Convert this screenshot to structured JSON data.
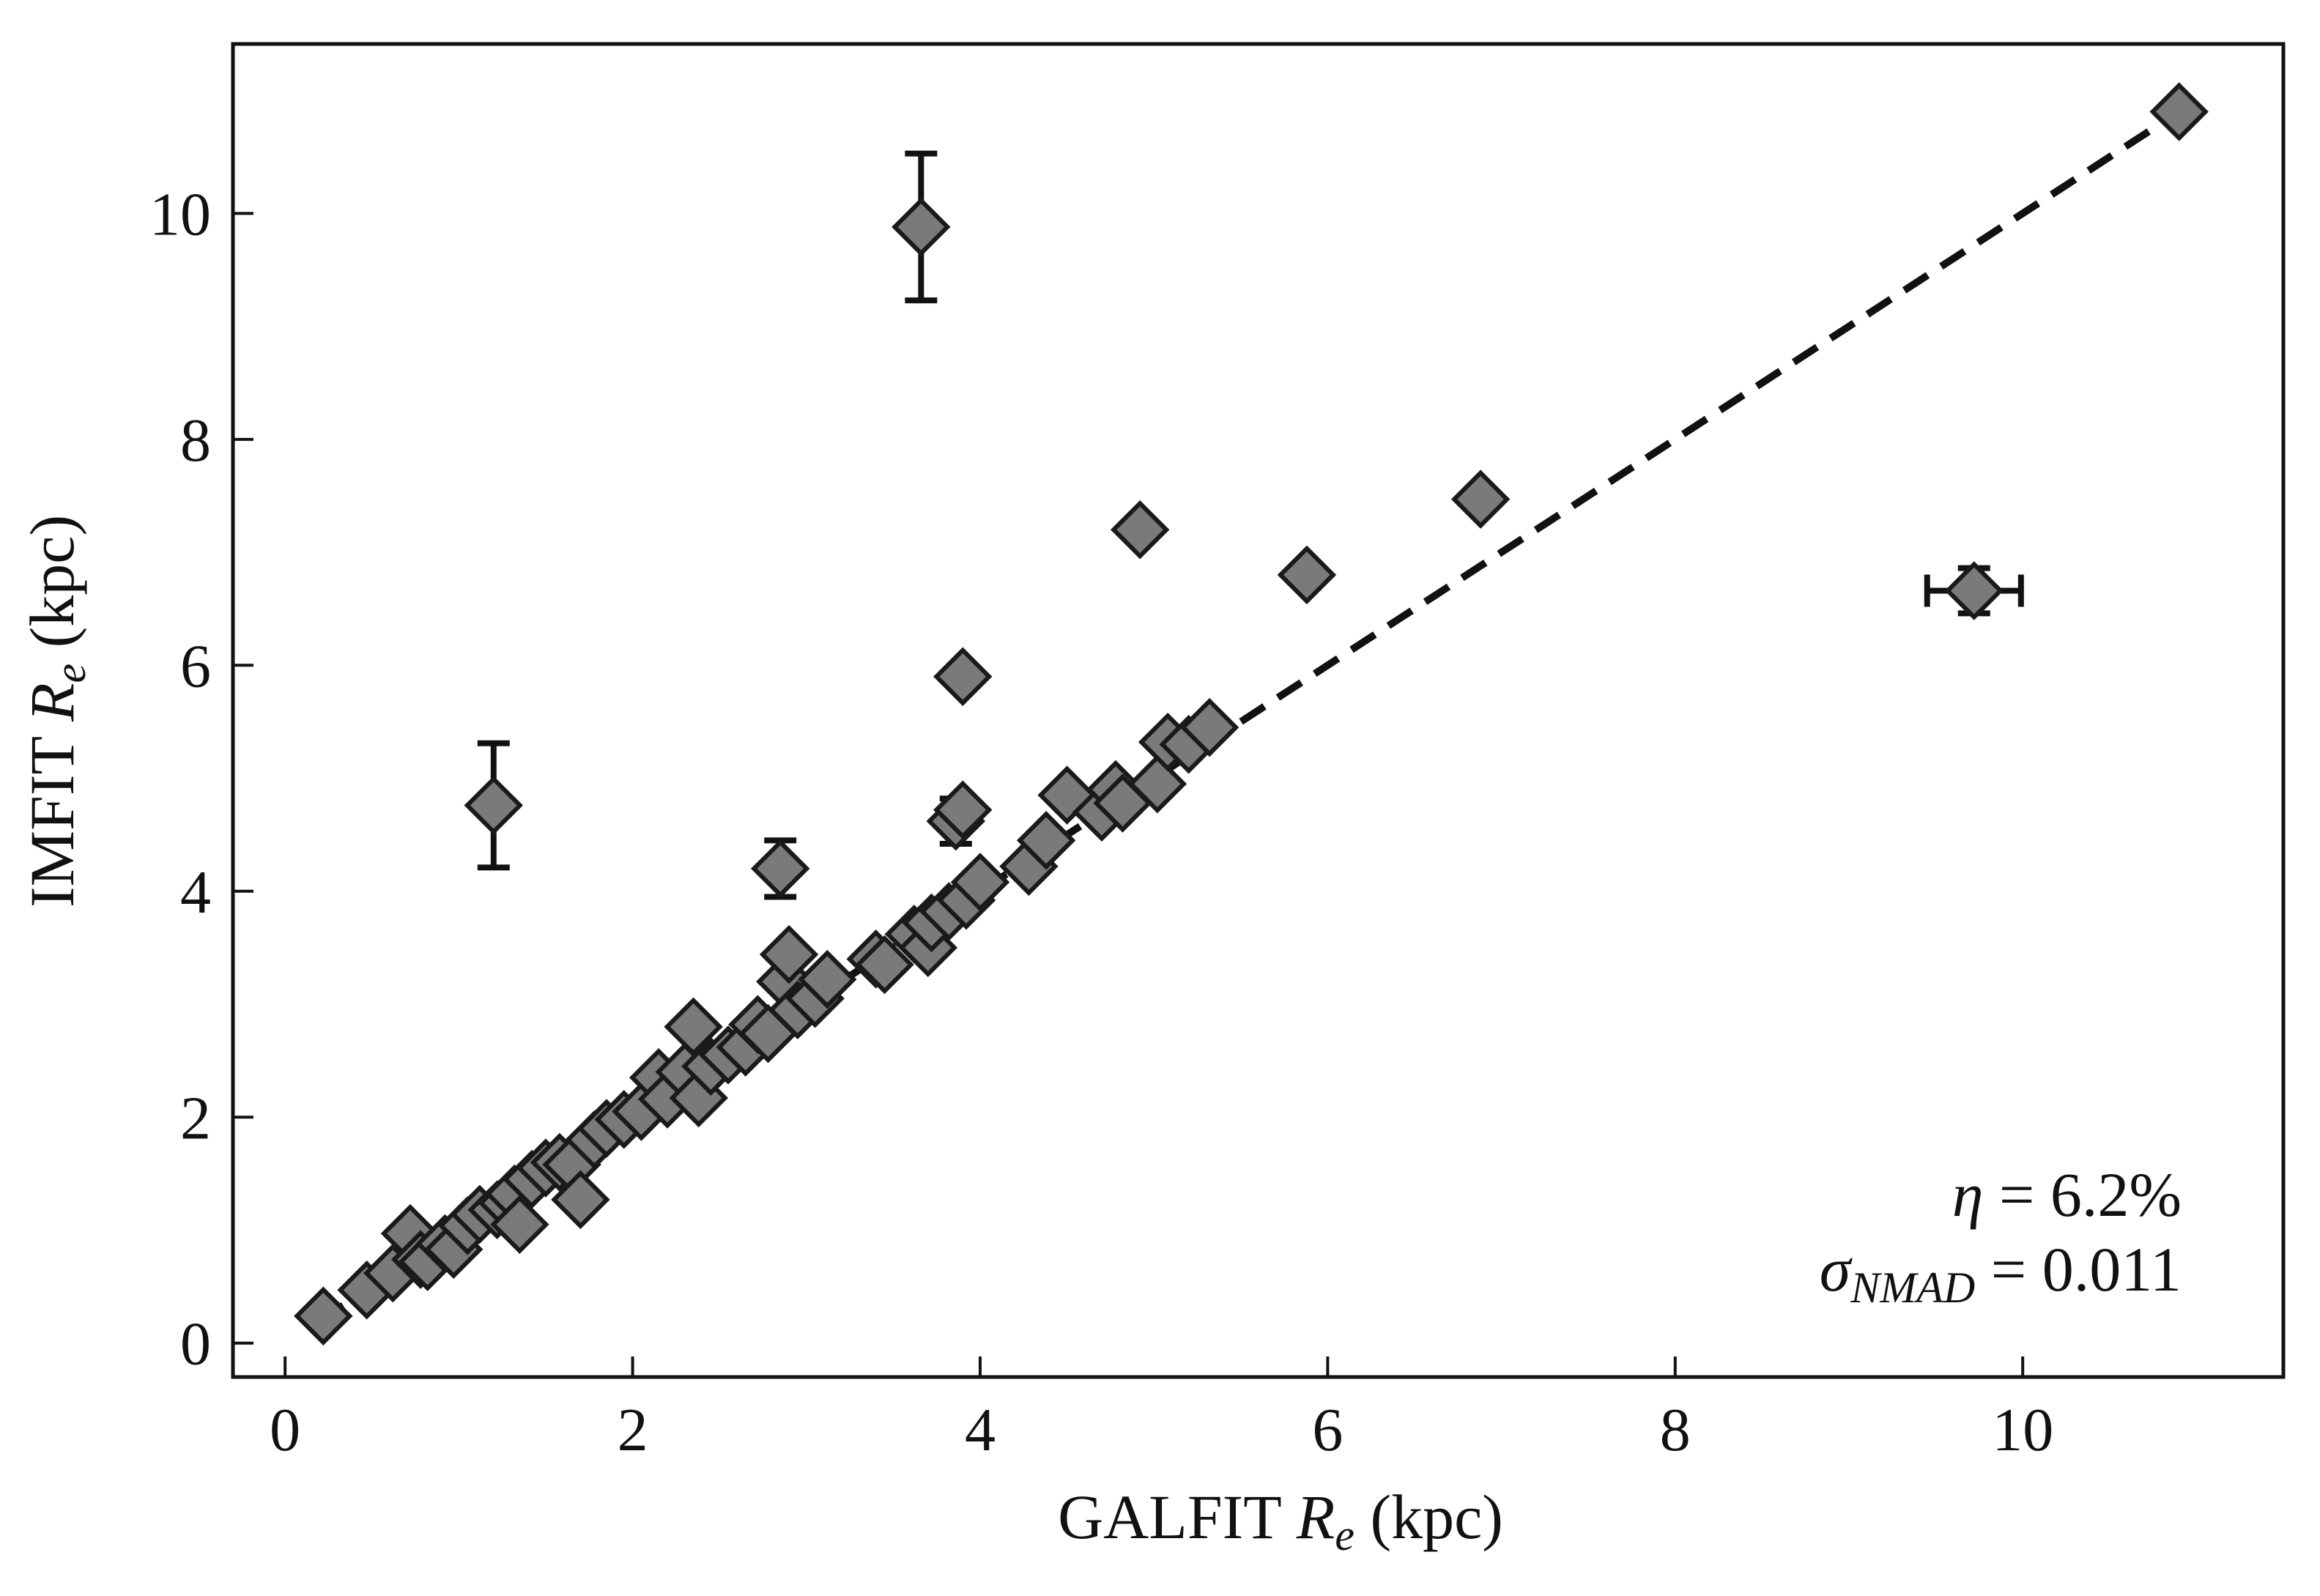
{
  "chart_data": {
    "type": "scatter",
    "xlabel": {
      "prefix": "GALFIT ",
      "var": "R",
      "sub": "e",
      "suffix": " (kpc)"
    },
    "ylabel": {
      "prefix": "IMFIT ",
      "var": "R",
      "sub": "e",
      "suffix": " (kpc)"
    },
    "xlim": [
      -0.3,
      11.5
    ],
    "ylim": [
      -0.3,
      11.5
    ],
    "xticks": [
      0,
      2,
      4,
      6,
      8,
      10
    ],
    "yticks": [
      0,
      2,
      4,
      6,
      8,
      10
    ],
    "grid": false,
    "marker": "diamond",
    "marker_color": "#7a7a7a",
    "edge_color": "#1a1a1a",
    "line_color": "#111111",
    "reference_line": {
      "style": "dashed",
      "x": [
        0.2,
        10.9
      ],
      "y": [
        0.2,
        10.9
      ]
    },
    "annotations": {
      "eta": {
        "symbol": "η",
        "text": " = 6.2%"
      },
      "sigma": {
        "symbol": "σ",
        "sub": "NMAD",
        "text": " = 0.011"
      }
    },
    "points": [
      {
        "x": 0.22,
        "y": 0.24
      },
      {
        "x": 0.47,
        "y": 0.47
      },
      {
        "x": 0.62,
        "y": 0.62
      },
      {
        "x": 0.72,
        "y": 0.97
      },
      {
        "x": 0.78,
        "y": 0.74
      },
      {
        "x": 0.82,
        "y": 0.72
      },
      {
        "x": 0.92,
        "y": 0.88
      },
      {
        "x": 0.97,
        "y": 0.83
      },
      {
        "x": 1.05,
        "y": 1.04
      },
      {
        "x": 1.12,
        "y": 1.14
      },
      {
        "x": 1.2,
        "y": 4.76,
        "yerr": 0.55
      },
      {
        "x": 1.22,
        "y": 1.18
      },
      {
        "x": 1.28,
        "y": 1.24
      },
      {
        "x": 1.32,
        "y": 1.32
      },
      {
        "x": 1.35,
        "y": 1.05
      },
      {
        "x": 1.42,
        "y": 1.45
      },
      {
        "x": 1.5,
        "y": 1.55
      },
      {
        "x": 1.58,
        "y": 1.6
      },
      {
        "x": 1.65,
        "y": 1.58
      },
      {
        "x": 1.7,
        "y": 1.27
      },
      {
        "x": 1.78,
        "y": 1.8
      },
      {
        "x": 1.85,
        "y": 1.9
      },
      {
        "x": 1.95,
        "y": 1.98
      },
      {
        "x": 2.05,
        "y": 2.05
      },
      {
        "x": 2.15,
        "y": 2.35
      },
      {
        "x": 2.2,
        "y": 2.16
      },
      {
        "x": 2.3,
        "y": 2.4
      },
      {
        "x": 2.35,
        "y": 2.8
      },
      {
        "x": 2.38,
        "y": 2.17
      },
      {
        "x": 2.45,
        "y": 2.45
      },
      {
        "x": 2.55,
        "y": 2.55
      },
      {
        "x": 2.65,
        "y": 2.62
      },
      {
        "x": 2.72,
        "y": 2.82
      },
      {
        "x": 2.78,
        "y": 2.74
      },
      {
        "x": 2.85,
        "y": 4.2,
        "yerr": 0.25
      },
      {
        "x": 2.88,
        "y": 3.2
      },
      {
        "x": 2.9,
        "y": 3.44
      },
      {
        "x": 2.95,
        "y": 2.95
      },
      {
        "x": 3.05,
        "y": 3.05
      },
      {
        "x": 3.12,
        "y": 3.22
      },
      {
        "x": 3.4,
        "y": 3.4
      },
      {
        "x": 3.45,
        "y": 3.35
      },
      {
        "x": 3.62,
        "y": 3.62
      },
      {
        "x": 3.66,
        "y": 9.88,
        "yerr": 0.65
      },
      {
        "x": 3.7,
        "y": 3.5
      },
      {
        "x": 3.72,
        "y": 3.72
      },
      {
        "x": 3.82,
        "y": 3.82
      },
      {
        "x": 3.86,
        "y": 4.62,
        "yerr": 0.2
      },
      {
        "x": 3.9,
        "y": 4.72
      },
      {
        "x": 3.9,
        "y": 5.9
      },
      {
        "x": 3.92,
        "y": 3.92
      },
      {
        "x": 4.0,
        "y": 4.08
      },
      {
        "x": 4.28,
        "y": 4.22
      },
      {
        "x": 4.38,
        "y": 4.45
      },
      {
        "x": 4.5,
        "y": 4.85
      },
      {
        "x": 4.7,
        "y": 4.7
      },
      {
        "x": 4.78,
        "y": 4.9
      },
      {
        "x": 4.82,
        "y": 4.78
      },
      {
        "x": 4.92,
        "y": 7.2
      },
      {
        "x": 5.02,
        "y": 4.95
      },
      {
        "x": 5.08,
        "y": 5.32
      },
      {
        "x": 5.2,
        "y": 5.3
      },
      {
        "x": 5.32,
        "y": 5.45
      },
      {
        "x": 5.88,
        "y": 6.8
      },
      {
        "x": 6.88,
        "y": 7.47
      },
      {
        "x": 9.72,
        "y": 6.66,
        "xerr": 0.27,
        "yerr": 0.2
      },
      {
        "x": 10.9,
        "y": 10.9
      }
    ]
  }
}
